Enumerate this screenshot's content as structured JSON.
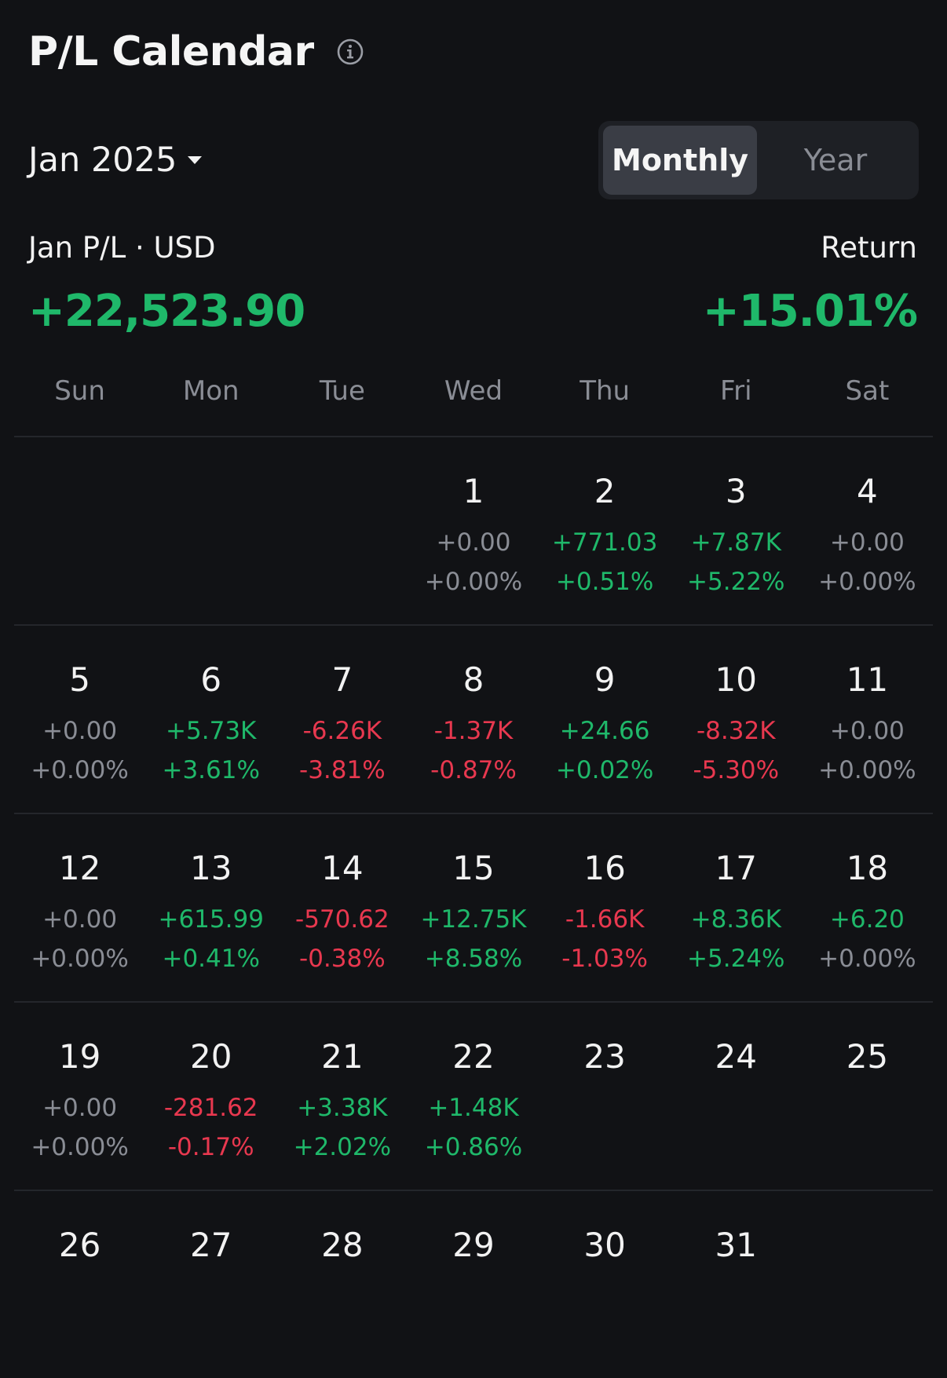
{
  "header": {
    "title": "P/L Calendar",
    "info_icon": "info-circle-icon"
  },
  "month_selector": {
    "label": "Jan 2025",
    "icon": "caret-down-icon"
  },
  "view_toggle": {
    "options": [
      {
        "label": "Monthly",
        "active": true
      },
      {
        "label": "Year",
        "active": false
      }
    ]
  },
  "summary": {
    "pl_label": "Jan P/L · USD",
    "pl_value": "+22,523.90",
    "return_label": "Return",
    "return_value": "+15.01%"
  },
  "colors": {
    "background": "#111215",
    "positive": "#1fb86a",
    "negative": "#e8384f",
    "neutral": "#8a8d95"
  },
  "weekdays": [
    "Sun",
    "Mon",
    "Tue",
    "Wed",
    "Thu",
    "Fri",
    "Sat"
  ],
  "weeks": [
    [
      null,
      null,
      null,
      {
        "day": "1",
        "pl": "+0.00",
        "pct": "+0.00%",
        "trend": "zero"
      },
      {
        "day": "2",
        "pl": "+771.03",
        "pct": "+0.51%",
        "trend": "pos"
      },
      {
        "day": "3",
        "pl": "+7.87K",
        "pct": "+5.22%",
        "trend": "pos"
      },
      {
        "day": "4",
        "pl": "+0.00",
        "pct": "+0.00%",
        "trend": "zero"
      }
    ],
    [
      {
        "day": "5",
        "pl": "+0.00",
        "pct": "+0.00%",
        "trend": "zero"
      },
      {
        "day": "6",
        "pl": "+5.73K",
        "pct": "+3.61%",
        "trend": "pos"
      },
      {
        "day": "7",
        "pl": "-6.26K",
        "pct": "-3.81%",
        "trend": "neg"
      },
      {
        "day": "8",
        "pl": "-1.37K",
        "pct": "-0.87%",
        "trend": "neg"
      },
      {
        "day": "9",
        "pl": "+24.66",
        "pct": "+0.02%",
        "trend": "pos"
      },
      {
        "day": "10",
        "pl": "-8.32K",
        "pct": "-5.30%",
        "trend": "neg"
      },
      {
        "day": "11",
        "pl": "+0.00",
        "pct": "+0.00%",
        "trend": "zero"
      }
    ],
    [
      {
        "day": "12",
        "pl": "+0.00",
        "pct": "+0.00%",
        "trend": "zero"
      },
      {
        "day": "13",
        "pl": "+615.99",
        "pct": "+0.41%",
        "trend": "pos"
      },
      {
        "day": "14",
        "pl": "-570.62",
        "pct": "-0.38%",
        "trend": "neg"
      },
      {
        "day": "15",
        "pl": "+12.75K",
        "pct": "+8.58%",
        "trend": "pos"
      },
      {
        "day": "16",
        "pl": "-1.66K",
        "pct": "-1.03%",
        "trend": "neg"
      },
      {
        "day": "17",
        "pl": "+8.36K",
        "pct": "+5.24%",
        "trend": "pos"
      },
      {
        "day": "18",
        "pl": "+6.20",
        "pct": "+0.00%",
        "trend": "pos",
        "pct_trend": "zero"
      }
    ],
    [
      {
        "day": "19",
        "pl": "+0.00",
        "pct": "+0.00%",
        "trend": "zero"
      },
      {
        "day": "20",
        "pl": "-281.62",
        "pct": "-0.17%",
        "trend": "neg"
      },
      {
        "day": "21",
        "pl": "+3.38K",
        "pct": "+2.02%",
        "trend": "pos"
      },
      {
        "day": "22",
        "pl": "+1.48K",
        "pct": "+0.86%",
        "trend": "pos"
      },
      {
        "day": "23",
        "pl": "",
        "pct": "",
        "trend": "zero"
      },
      {
        "day": "24",
        "pl": "",
        "pct": "",
        "trend": "zero"
      },
      {
        "day": "25",
        "pl": "",
        "pct": "",
        "trend": "zero"
      }
    ],
    [
      {
        "day": "26",
        "pl": "",
        "pct": "",
        "trend": "zero"
      },
      {
        "day": "27",
        "pl": "",
        "pct": "",
        "trend": "zero"
      },
      {
        "day": "28",
        "pl": "",
        "pct": "",
        "trend": "zero"
      },
      {
        "day": "29",
        "pl": "",
        "pct": "",
        "trend": "zero"
      },
      {
        "day": "30",
        "pl": "",
        "pct": "",
        "trend": "zero"
      },
      {
        "day": "31",
        "pl": "",
        "pct": "",
        "trend": "zero"
      },
      null
    ]
  ]
}
